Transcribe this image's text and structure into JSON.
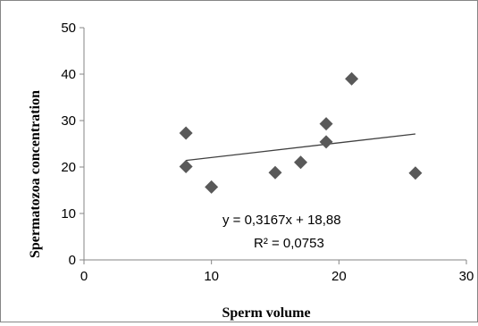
{
  "chart_data": {
    "type": "scatter",
    "xlabel": "Sperm volume",
    "ylabel": "Spermatozoa concentration",
    "xlim": [
      0,
      30
    ],
    "ylim": [
      0,
      50
    ],
    "x_ticks": [
      "0",
      "10",
      "20",
      "30"
    ],
    "y_ticks": [
      "0",
      "10",
      "20",
      "30",
      "40",
      "50"
    ],
    "grid": false,
    "marker": "diamond",
    "marker_color": "#595959",
    "x": [
      8,
      8,
      10,
      15,
      17,
      19,
      19,
      21,
      26
    ],
    "y": [
      27.3,
      20.1,
      15.7,
      18.8,
      21.0,
      25.4,
      29.3,
      39.0,
      18.7
    ],
    "trendline": {
      "type": "linear",
      "slope": 0.3167,
      "intercept": 18.88,
      "x_range": [
        8,
        26
      ],
      "equation": "y = 0,3167x + 18,88",
      "r_squared": "R² = 0,0753"
    }
  }
}
